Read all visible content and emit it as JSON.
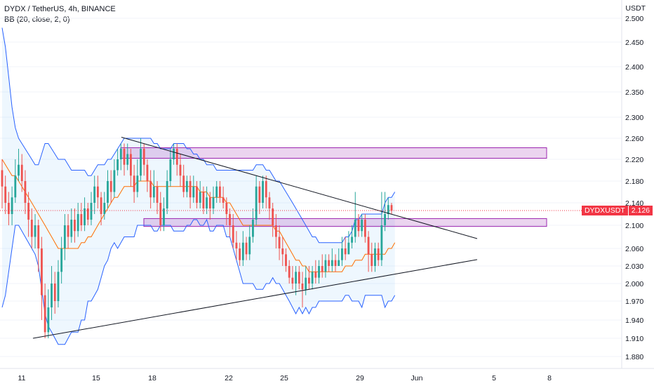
{
  "header": {
    "symbol_line": "DYDX / TetherUS, 4h, BINANCE",
    "indicator_line": "BB (20, close, 2, 0)"
  },
  "axis": {
    "unit": "USDT"
  },
  "price_tag": {
    "symbol": "DYDXUSDT",
    "price": "2.126"
  },
  "colors": {
    "up": "#26a69a",
    "down": "#ef5350",
    "bb_band": "#2962ff",
    "bb_basis": "#ff6d00",
    "zone": "#9c27b0"
  },
  "chart_data": {
    "type": "candlestick",
    "y_ticks": [
      "2.500",
      "2.450",
      "2.400",
      "2.350",
      "2.300",
      "2.260",
      "2.220",
      "2.180",
      "2.140",
      "2.100",
      "2.060",
      "2.030",
      "2.000",
      "1.970",
      "1.940",
      "1.910",
      "1.880"
    ],
    "x_ticks": [
      "11",
      "15",
      "18",
      "22",
      "25",
      "29",
      "Jun",
      "5",
      "8"
    ],
    "last_price": 2.126,
    "zones": [
      {
        "from_date": "16",
        "to_date": "8+",
        "low": 2.222,
        "high": 2.242
      },
      {
        "from_date": "17",
        "to_date": "8+",
        "low": 2.098,
        "high": 2.112
      }
    ],
    "trendlines": [
      {
        "name": "upper",
        "from": {
          "x": "16",
          "y": 2.262
        },
        "to": {
          "x": "4+",
          "y": 2.077
        }
      },
      {
        "name": "lower",
        "from": {
          "x": "12",
          "y": 1.91
        },
        "to": {
          "x": "4+",
          "y": 2.041
        }
      }
    ],
    "candles": [
      [
        2.2,
        2.17,
        2.22,
        2.13
      ],
      [
        2.17,
        2.14,
        2.19,
        2.12
      ],
      [
        2.14,
        2.12,
        2.16,
        2.1
      ],
      [
        2.12,
        2.15,
        2.17,
        2.1
      ],
      [
        2.15,
        2.19,
        2.22,
        2.14
      ],
      [
        2.19,
        2.21,
        2.24,
        2.18
      ],
      [
        2.21,
        2.18,
        2.23,
        2.16
      ],
      [
        2.18,
        2.14,
        2.2,
        2.12
      ],
      [
        2.14,
        2.11,
        2.16,
        2.08
      ],
      [
        2.11,
        2.08,
        2.13,
        2.06
      ],
      [
        2.08,
        2.1,
        2.12,
        2.06
      ],
      [
        2.1,
        2.06,
        2.11,
        2.02
      ],
      [
        2.06,
        1.98,
        2.08,
        1.94
      ],
      [
        1.98,
        1.92,
        2.0,
        1.91
      ],
      [
        1.92,
        1.96,
        1.99,
        1.91
      ],
      [
        1.96,
        2.0,
        2.03,
        1.94
      ],
      [
        2.0,
        1.97,
        2.02,
        1.95
      ],
      [
        1.97,
        2.02,
        2.04,
        1.96
      ],
      [
        2.02,
        2.06,
        2.08,
        2.0
      ],
      [
        2.06,
        2.1,
        2.12,
        2.04
      ],
      [
        2.1,
        2.08,
        2.12,
        2.06
      ],
      [
        2.08,
        2.11,
        2.13,
        2.07
      ],
      [
        2.11,
        2.09,
        2.13,
        2.07
      ],
      [
        2.09,
        2.12,
        2.14,
        2.08
      ],
      [
        2.12,
        2.1,
        2.14,
        2.09
      ],
      [
        2.1,
        2.13,
        2.15,
        2.09
      ],
      [
        2.13,
        2.11,
        2.14,
        2.1
      ],
      [
        2.11,
        2.14,
        2.16,
        2.1
      ],
      [
        2.14,
        2.17,
        2.19,
        2.12
      ],
      [
        2.17,
        2.15,
        2.19,
        2.13
      ],
      [
        2.15,
        2.12,
        2.16,
        2.1
      ],
      [
        2.12,
        2.14,
        2.16,
        2.11
      ],
      [
        2.14,
        2.18,
        2.2,
        2.13
      ],
      [
        2.18,
        2.16,
        2.2,
        2.14
      ],
      [
        2.16,
        2.2,
        2.22,
        2.15
      ],
      [
        2.2,
        2.22,
        2.24,
        2.19
      ],
      [
        2.22,
        2.24,
        2.25,
        2.2
      ],
      [
        2.24,
        2.21,
        2.25,
        2.19
      ],
      [
        2.21,
        2.23,
        2.25,
        2.2
      ],
      [
        2.23,
        2.19,
        2.24,
        2.17
      ],
      [
        2.19,
        2.16,
        2.21,
        2.14
      ],
      [
        2.16,
        2.19,
        2.22,
        2.15
      ],
      [
        2.19,
        2.24,
        2.26,
        2.18
      ],
      [
        2.24,
        2.21,
        2.25,
        2.19
      ],
      [
        2.21,
        2.18,
        2.22,
        2.16
      ],
      [
        2.18,
        2.15,
        2.2,
        2.13
      ],
      [
        2.15,
        2.17,
        2.2,
        2.14
      ],
      [
        2.17,
        2.14,
        2.18,
        2.12
      ],
      [
        2.14,
        2.1,
        2.16,
        2.09
      ],
      [
        2.1,
        2.13,
        2.15,
        2.09
      ],
      [
        2.13,
        2.18,
        2.2,
        2.12
      ],
      [
        2.18,
        2.22,
        2.24,
        2.17
      ],
      [
        2.22,
        2.24,
        2.25,
        2.21
      ],
      [
        2.24,
        2.21,
        2.25,
        2.19
      ],
      [
        2.21,
        2.19,
        2.23,
        2.17
      ],
      [
        2.19,
        2.16,
        2.21,
        2.15
      ],
      [
        2.16,
        2.18,
        2.19,
        2.15
      ],
      [
        2.18,
        2.15,
        2.19,
        2.13
      ],
      [
        2.15,
        2.17,
        2.19,
        2.14
      ],
      [
        2.17,
        2.14,
        2.18,
        2.13
      ],
      [
        2.14,
        2.16,
        2.18,
        2.13
      ],
      [
        2.16,
        2.13,
        2.17,
        2.12
      ],
      [
        2.13,
        2.15,
        2.17,
        2.12
      ],
      [
        2.15,
        2.13,
        2.16,
        2.11
      ],
      [
        2.13,
        2.15,
        2.17,
        2.12
      ],
      [
        2.15,
        2.17,
        2.18,
        2.14
      ],
      [
        2.17,
        2.15,
        2.18,
        2.14
      ],
      [
        2.15,
        2.14,
        2.17,
        2.13
      ],
      [
        2.14,
        2.12,
        2.15,
        2.1
      ],
      [
        2.12,
        2.1,
        2.13,
        2.08
      ],
      [
        2.1,
        2.07,
        2.12,
        2.06
      ],
      [
        2.07,
        2.06,
        2.09,
        2.04
      ],
      [
        2.06,
        2.04,
        2.07,
        2.03
      ],
      [
        2.04,
        2.07,
        2.09,
        2.03
      ],
      [
        2.07,
        2.05,
        2.08,
        2.04
      ],
      [
        2.05,
        2.08,
        2.1,
        2.04
      ],
      [
        2.08,
        2.11,
        2.13,
        2.07
      ],
      [
        2.11,
        2.17,
        2.19,
        2.1
      ],
      [
        2.17,
        2.14,
        2.18,
        2.12
      ],
      [
        2.14,
        2.18,
        2.19,
        2.13
      ],
      [
        2.18,
        2.15,
        2.19,
        2.13
      ],
      [
        2.15,
        2.13,
        2.16,
        2.11
      ],
      [
        2.13,
        2.1,
        2.14,
        2.08
      ],
      [
        2.1,
        2.08,
        2.12,
        2.06
      ],
      [
        2.08,
        2.06,
        2.1,
        2.04
      ],
      [
        2.06,
        2.05,
        2.08,
        2.03
      ],
      [
        2.05,
        2.03,
        2.06,
        2.02
      ],
      [
        2.03,
        2.01,
        2.04,
        2.0
      ],
      [
        2.01,
        2.0,
        2.03,
        1.99
      ],
      [
        2.0,
        2.02,
        2.03,
        1.98
      ],
      [
        2.02,
        2.0,
        2.03,
        1.99
      ],
      [
        2.0,
        1.99,
        2.02,
        1.96
      ],
      [
        1.99,
        2.01,
        2.03,
        1.98
      ],
      [
        2.01,
        2.0,
        2.03,
        1.99
      ],
      [
        2.0,
        2.02,
        2.03,
        1.99
      ],
      [
        2.02,
        2.01,
        2.04,
        2.0
      ],
      [
        2.01,
        2.03,
        2.04,
        2.0
      ],
      [
        2.03,
        2.02,
        2.05,
        2.01
      ],
      [
        2.02,
        2.04,
        2.05,
        2.01
      ],
      [
        2.04,
        2.03,
        2.05,
        2.02
      ],
      [
        2.03,
        2.04,
        2.06,
        2.02
      ],
      [
        2.04,
        2.03,
        2.05,
        2.02
      ],
      [
        2.03,
        2.04,
        2.06,
        2.03
      ],
      [
        2.04,
        2.06,
        2.08,
        2.03
      ],
      [
        2.06,
        2.05,
        2.08,
        2.04
      ],
      [
        2.05,
        2.07,
        2.09,
        2.05
      ],
      [
        2.07,
        2.08,
        2.1,
        2.06
      ],
      [
        2.08,
        2.11,
        2.16,
        2.07
      ],
      [
        2.11,
        2.09,
        2.12,
        2.08
      ],
      [
        2.09,
        2.11,
        2.12,
        2.08
      ],
      [
        2.11,
        2.08,
        2.12,
        2.07
      ],
      [
        2.08,
        2.05,
        2.09,
        2.02
      ],
      [
        2.05,
        2.03,
        2.07,
        2.02
      ],
      [
        2.03,
        2.06,
        2.07,
        2.02
      ],
      [
        2.06,
        2.04,
        2.07,
        2.03
      ],
      [
        2.04,
        2.1,
        2.16,
        2.03
      ],
      [
        2.1,
        2.12,
        2.16,
        2.09
      ],
      [
        2.12,
        2.136,
        2.15,
        2.11
      ],
      [
        2.136,
        2.126,
        2.14,
        2.12
      ]
    ],
    "bb_upper": [
      2.48,
      2.44,
      2.38,
      2.32,
      2.28,
      2.26,
      2.25,
      2.24,
      2.23,
      2.22,
      2.21,
      2.21,
      2.23,
      2.25,
      2.25,
      2.24,
      2.23,
      2.22,
      2.22,
      2.22,
      2.21,
      2.2,
      2.2,
      2.2,
      2.2,
      2.2,
      2.19,
      2.19,
      2.2,
      2.21,
      2.21,
      2.21,
      2.22,
      2.22,
      2.23,
      2.24,
      2.25,
      2.26,
      2.26,
      2.26,
      2.26,
      2.26,
      2.26,
      2.26,
      2.26,
      2.26,
      2.25,
      2.25,
      2.24,
      2.24,
      2.24,
      2.24,
      2.25,
      2.25,
      2.25,
      2.25,
      2.24,
      2.24,
      2.23,
      2.23,
      2.22,
      2.22,
      2.21,
      2.21,
      2.21,
      2.2,
      2.2,
      2.2,
      2.2,
      2.2,
      2.2,
      2.2,
      2.2,
      2.2,
      2.2,
      2.2,
      2.2,
      2.21,
      2.21,
      2.21,
      2.2,
      2.2,
      2.19,
      2.18,
      2.18,
      2.17,
      2.16,
      2.15,
      2.14,
      2.13,
      2.12,
      2.11,
      2.1,
      2.09,
      2.08,
      2.08,
      2.07,
      2.07,
      2.07,
      2.07,
      2.07,
      2.07,
      2.07,
      2.07,
      2.08,
      2.08,
      2.09,
      2.11,
      2.11,
      2.12,
      2.12,
      2.12,
      2.12,
      2.12,
      2.12,
      2.12,
      2.14,
      2.15,
      2.15,
      2.16
    ],
    "bb_basis": [
      2.22,
      2.21,
      2.2,
      2.19,
      2.19,
      2.18,
      2.17,
      2.16,
      2.15,
      2.14,
      2.13,
      2.12,
      2.11,
      2.1,
      2.09,
      2.08,
      2.07,
      2.06,
      2.06,
      2.06,
      2.06,
      2.06,
      2.06,
      2.06,
      2.07,
      2.07,
      2.08,
      2.08,
      2.09,
      2.1,
      2.11,
      2.12,
      2.13,
      2.14,
      2.15,
      2.15,
      2.16,
      2.17,
      2.17,
      2.17,
      2.17,
      2.18,
      2.18,
      2.18,
      2.18,
      2.18,
      2.17,
      2.17,
      2.17,
      2.17,
      2.17,
      2.17,
      2.17,
      2.17,
      2.17,
      2.17,
      2.17,
      2.17,
      2.17,
      2.17,
      2.16,
      2.16,
      2.16,
      2.15,
      2.15,
      2.15,
      2.15,
      2.15,
      2.14,
      2.14,
      2.13,
      2.12,
      2.11,
      2.1,
      2.1,
      2.1,
      2.1,
      2.1,
      2.1,
      2.1,
      2.1,
      2.1,
      2.1,
      2.09,
      2.09,
      2.08,
      2.07,
      2.06,
      2.05,
      2.04,
      2.04,
      2.03,
      2.03,
      2.02,
      2.02,
      2.02,
      2.02,
      2.02,
      2.02,
      2.02,
      2.02,
      2.02,
      2.02,
      2.02,
      2.03,
      2.03,
      2.03,
      2.04,
      2.04,
      2.04,
      2.05,
      2.05,
      2.05,
      2.05,
      2.05,
      2.05,
      2.05,
      2.06,
      2.06,
      2.07
    ],
    "bb_lower": [
      1.96,
      1.98,
      2.02,
      2.06,
      2.1,
      2.1,
      2.09,
      2.08,
      2.07,
      2.06,
      2.05,
      2.03,
      1.99,
      1.95,
      1.93,
      1.92,
      1.91,
      1.9,
      1.9,
      1.9,
      1.91,
      1.92,
      1.92,
      1.92,
      1.94,
      1.94,
      1.97,
      1.97,
      1.98,
      1.99,
      2.01,
      2.03,
      2.04,
      2.06,
      2.07,
      2.06,
      2.07,
      2.08,
      2.08,
      2.08,
      2.08,
      2.1,
      2.1,
      2.1,
      2.1,
      2.1,
      2.09,
      2.09,
      2.1,
      2.1,
      2.1,
      2.1,
      2.09,
      2.09,
      2.09,
      2.09,
      2.1,
      2.1,
      2.11,
      2.11,
      2.1,
      2.1,
      2.11,
      2.09,
      2.09,
      2.1,
      2.1,
      2.1,
      2.08,
      2.08,
      2.06,
      2.04,
      2.02,
      2.0,
      2.0,
      2.0,
      2.0,
      1.99,
      1.99,
      1.99,
      2.0,
      2.0,
      2.01,
      2.0,
      2.0,
      1.99,
      1.98,
      1.97,
      1.96,
      1.95,
      1.96,
      1.95,
      1.96,
      1.95,
      1.96,
      1.96,
      1.97,
      1.97,
      1.97,
      1.97,
      1.97,
      1.97,
      1.97,
      1.97,
      1.98,
      1.98,
      1.97,
      1.97,
      1.97,
      1.96,
      1.98,
      1.98,
      1.98,
      1.98,
      1.98,
      1.98,
      1.96,
      1.97,
      1.97,
      1.98
    ]
  }
}
